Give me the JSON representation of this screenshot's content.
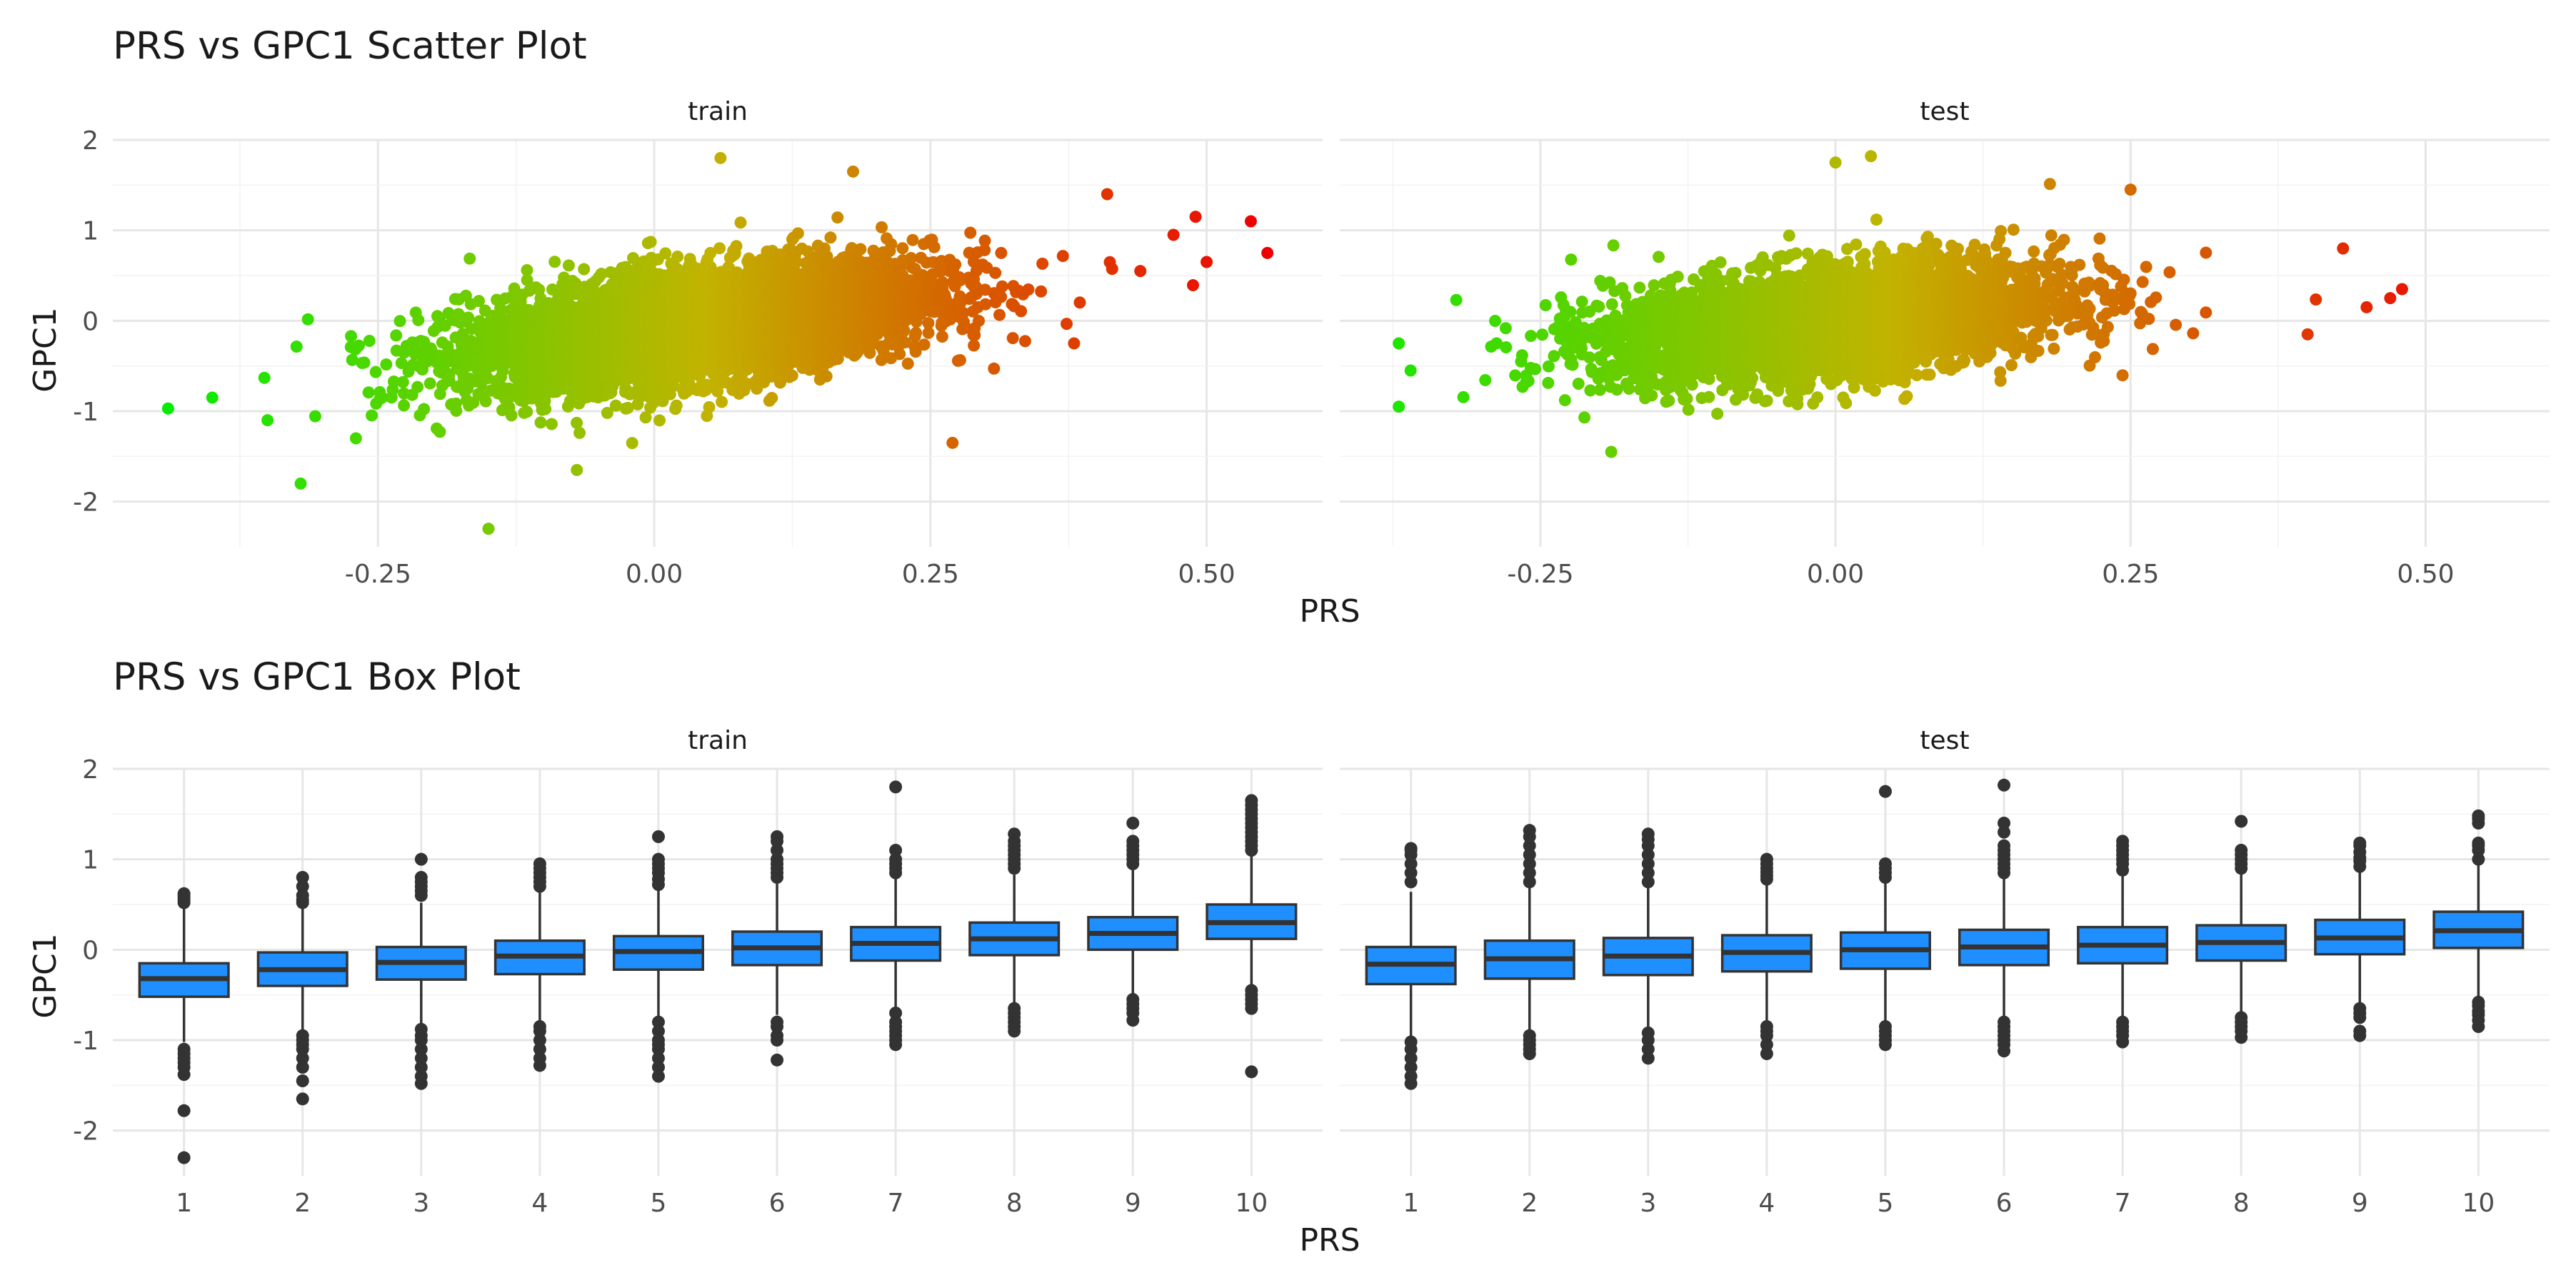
{
  "colors": {
    "grid_major": "#e6e6e6",
    "grid_minor": "#f2f2f2",
    "text_dark": "#1a1a1a",
    "text_tick": "#4d4d4d",
    "box_fill": "#1f8fff",
    "box_stroke": "#333333",
    "outlier": "#333333",
    "gradient_low": "#00ee00",
    "gradient_mid": "#c2b300",
    "gradient_high": "#ee0000"
  },
  "chart_data": [
    {
      "type": "scatter",
      "title": "PRS vs GPC1 Scatter Plot",
      "xlabel": "PRS",
      "ylabel": "GPC1",
      "color_scale": "color by PRS value, green (low) to red (high)",
      "panels": [
        {
          "name": "train",
          "xlim": [
            -0.49,
            0.605
          ],
          "ylim": [
            -2.5,
            2.0
          ],
          "xticks": [
            -0.25,
            0.0,
            0.25,
            0.5
          ],
          "xtick_labels": [
            "-0.25",
            "0.00",
            "0.25",
            "0.50"
          ],
          "yticks": [
            -2,
            -1,
            0,
            1,
            2
          ],
          "ytick_labels": [
            "-2",
            "-1",
            "0",
            "1",
            "2"
          ],
          "cloud": {
            "n": 5000,
            "x_mean": 0.04,
            "x_sd": 0.11,
            "slope": 1.6,
            "y_intercept": -0.05,
            "resid_sd": 0.3
          },
          "points": [
            {
              "x": -0.44,
              "y": -0.97
            },
            {
              "x": -0.4,
              "y": -0.85
            },
            {
              "x": -0.35,
              "y": -1.1
            },
            {
              "x": -0.32,
              "y": -1.8
            },
            {
              "x": -0.15,
              "y": -2.3
            },
            {
              "x": 0.06,
              "y": 1.8
            },
            {
              "x": 0.18,
              "y": 1.65
            },
            {
              "x": 0.27,
              "y": -1.35
            },
            {
              "x": 0.49,
              "y": 1.15
            },
            {
              "x": 0.54,
              "y": 1.1
            },
            {
              "x": 0.555,
              "y": 0.75
            },
            {
              "x": 0.5,
              "y": 0.65
            },
            {
              "x": 0.47,
              "y": 0.95
            },
            {
              "x": 0.44,
              "y": 0.55
            },
            {
              "x": 0.41,
              "y": 1.4
            },
            {
              "x": 0.38,
              "y": -0.25
            },
            {
              "x": -0.27,
              "y": -1.3
            },
            {
              "x": -0.07,
              "y": -1.65
            }
          ]
        },
        {
          "name": "test",
          "xlim": [
            -0.42,
            0.605
          ],
          "ylim": [
            -2.5,
            2.0
          ],
          "xticks": [
            -0.25,
            0.0,
            0.25,
            0.5
          ],
          "xtick_labels": [
            "-0.25",
            "0.00",
            "0.25",
            "0.50"
          ],
          "yticks": [
            -2,
            -1,
            0,
            1,
            2
          ],
          "ytick_labels": [
            "-2",
            "-1",
            "0",
            "1",
            "2"
          ],
          "cloud": {
            "n": 4000,
            "x_mean": 0.0,
            "x_sd": 0.1,
            "slope": 1.25,
            "y_intercept": 0.0,
            "resid_sd": 0.3
          },
          "points": [
            {
              "x": -0.37,
              "y": -0.95
            },
            {
              "x": -0.37,
              "y": -0.25
            },
            {
              "x": -0.36,
              "y": -0.55
            },
            {
              "x": 0.0,
              "y": 1.75
            },
            {
              "x": 0.03,
              "y": 1.82
            },
            {
              "x": 0.48,
              "y": 0.35
            },
            {
              "x": 0.47,
              "y": 0.25
            },
            {
              "x": 0.45,
              "y": 0.15
            },
            {
              "x": 0.43,
              "y": 0.8
            },
            {
              "x": -0.19,
              "y": -1.45
            },
            {
              "x": 0.25,
              "y": 1.45
            },
            {
              "x": 0.4,
              "y": -0.15
            }
          ]
        }
      ]
    },
    {
      "type": "box",
      "title": "PRS vs GPC1 Box Plot",
      "xlabel": "PRS",
      "ylabel": "GPC1",
      "panels": [
        {
          "name": "train",
          "categories": [
            "1",
            "2",
            "3",
            "4",
            "5",
            "6",
            "7",
            "8",
            "9",
            "10"
          ],
          "ylim": [
            -2.5,
            2.0
          ],
          "yticks": [
            -2,
            -1,
            0,
            1,
            2
          ],
          "ytick_labels": [
            "-2",
            "-1",
            "0",
            "1",
            "2"
          ],
          "boxes": [
            {
              "q1": -0.52,
              "median": -0.32,
              "q3": -0.15,
              "low": -1.02,
              "high": 0.5,
              "outliers": [
                0.52,
                0.55,
                0.58,
                0.6,
                0.62,
                -1.1,
                -1.15,
                -1.2,
                -1.25,
                -1.3,
                -1.38,
                -1.78,
                -2.3
              ]
            },
            {
              "q1": -0.4,
              "median": -0.22,
              "q3": -0.03,
              "low": -0.92,
              "high": 0.5,
              "outliers": [
                0.52,
                0.55,
                0.6,
                0.7,
                0.8,
                -0.95,
                -1.0,
                -1.05,
                -1.1,
                -1.2,
                -1.3,
                -1.45,
                -1.65
              ]
            },
            {
              "q1": -0.33,
              "median": -0.14,
              "q3": 0.03,
              "low": -0.85,
              "high": 0.52,
              "outliers": [
                0.6,
                0.65,
                0.7,
                0.75,
                0.8,
                1.0,
                -0.88,
                -0.95,
                -1.0,
                -1.1,
                -1.2,
                -1.3,
                -1.4,
                -1.48
              ]
            },
            {
              "q1": -0.27,
              "median": -0.07,
              "q3": 0.1,
              "low": -0.8,
              "high": 0.63,
              "outliers": [
                0.7,
                0.75,
                0.8,
                0.85,
                0.9,
                0.95,
                -0.85,
                -0.9,
                -1.0,
                -1.1,
                -1.2,
                -1.28
              ]
            },
            {
              "q1": -0.22,
              "median": -0.02,
              "q3": 0.15,
              "low": -0.75,
              "high": 0.68,
              "outliers": [
                0.72,
                0.78,
                0.85,
                0.9,
                0.95,
                1.0,
                1.25,
                -0.8,
                -0.9,
                -1.0,
                -1.05,
                -1.1,
                -1.2,
                -1.3,
                -1.4
              ]
            },
            {
              "q1": -0.17,
              "median": 0.02,
              "q3": 0.2,
              "low": -0.72,
              "high": 0.73,
              "outliers": [
                0.8,
                0.85,
                0.9,
                0.95,
                1.0,
                1.1,
                1.2,
                1.25,
                -0.8,
                -0.85,
                -0.95,
                -1.0,
                -1.22
              ]
            },
            {
              "q1": -0.12,
              "median": 0.07,
              "q3": 0.25,
              "low": -0.63,
              "high": 0.78,
              "outliers": [
                0.85,
                0.9,
                0.95,
                1.0,
                1.1,
                1.8,
                -0.7,
                -0.8,
                -0.85,
                -0.9,
                -0.95,
                -1.0,
                -1.05
              ]
            },
            {
              "q1": -0.06,
              "median": 0.12,
              "q3": 0.3,
              "low": -0.6,
              "high": 0.83,
              "outliers": [
                0.9,
                0.95,
                1.0,
                1.05,
                1.1,
                1.15,
                1.2,
                1.28,
                -0.65,
                -0.7,
                -0.75,
                -0.8,
                -0.85,
                -0.9
              ]
            },
            {
              "q1": 0.0,
              "median": 0.18,
              "q3": 0.36,
              "low": -0.52,
              "high": 0.88,
              "outliers": [
                0.95,
                1.0,
                1.05,
                1.1,
                1.15,
                1.2,
                1.4,
                -0.55,
                -0.6,
                -0.65,
                -0.7,
                -0.78
              ]
            },
            {
              "q1": 0.12,
              "median": 0.3,
              "q3": 0.5,
              "low": -0.42,
              "high": 1.05,
              "outliers": [
                1.1,
                1.15,
                1.2,
                1.25,
                1.3,
                1.35,
                1.4,
                1.45,
                1.5,
                1.55,
                1.6,
                1.65,
                -0.45,
                -0.5,
                -0.55,
                -0.6,
                -0.65,
                -1.35
              ]
            }
          ]
        },
        {
          "name": "test",
          "categories": [
            "1",
            "2",
            "3",
            "4",
            "5",
            "6",
            "7",
            "8",
            "9",
            "10"
          ],
          "ylim": [
            -2.5,
            2.0
          ],
          "yticks": [
            -2,
            -1,
            0,
            1,
            2
          ],
          "ytick_labels": [
            "-2",
            "-1",
            "0",
            "1",
            "2"
          ],
          "boxes": [
            {
              "q1": -0.38,
              "median": -0.16,
              "q3": 0.03,
              "low": -0.98,
              "high": 0.64,
              "outliers": [
                0.75,
                0.85,
                0.95,
                1.05,
                1.1,
                1.12,
                -1.02,
                -1.1,
                -1.2,
                -1.3,
                -1.4,
                -1.48
              ]
            },
            {
              "q1": -0.32,
              "median": -0.1,
              "q3": 0.1,
              "low": -0.9,
              "high": 0.7,
              "outliers": [
                0.75,
                0.85,
                0.95,
                1.05,
                1.15,
                1.25,
                1.32,
                -0.95,
                -1.0,
                -1.05,
                -1.1,
                -1.15
              ]
            },
            {
              "q1": -0.28,
              "median": -0.07,
              "q3": 0.13,
              "low": -0.88,
              "high": 0.72,
              "outliers": [
                0.75,
                0.85,
                0.95,
                1.05,
                1.15,
                1.22,
                1.28,
                -0.92,
                -1.0,
                -1.1,
                -1.2
              ]
            },
            {
              "q1": -0.24,
              "median": -0.03,
              "q3": 0.16,
              "low": -0.82,
              "high": 0.73,
              "outliers": [
                0.78,
                0.82,
                0.86,
                0.9,
                0.95,
                1.0,
                -0.85,
                -0.9,
                -0.95,
                -1.05,
                -1.15
              ]
            },
            {
              "q1": -0.21,
              "median": 0.0,
              "q3": 0.19,
              "low": -0.8,
              "high": 0.76,
              "outliers": [
                0.8,
                0.85,
                0.9,
                0.95,
                1.75,
                -0.85,
                -0.9,
                -0.95,
                -1.0,
                -1.05
              ]
            },
            {
              "q1": -0.17,
              "median": 0.03,
              "q3": 0.22,
              "low": -0.76,
              "high": 0.8,
              "outliers": [
                0.85,
                0.9,
                0.95,
                1.0,
                1.05,
                1.1,
                1.15,
                1.3,
                1.4,
                1.82,
                -0.8,
                -0.85,
                -0.9,
                -0.95,
                -1.0,
                -1.05,
                -1.12
              ]
            },
            {
              "q1": -0.15,
              "median": 0.05,
              "q3": 0.25,
              "low": -0.75,
              "high": 0.82,
              "outliers": [
                0.88,
                0.95,
                1.0,
                1.05,
                1.1,
                1.15,
                1.2,
                -0.8,
                -0.85,
                -0.9,
                -0.95,
                -1.02
              ]
            },
            {
              "q1": -0.12,
              "median": 0.08,
              "q3": 0.27,
              "low": -0.72,
              "high": 0.85,
              "outliers": [
                0.9,
                0.95,
                1.0,
                1.05,
                1.1,
                1.42,
                -0.75,
                -0.8,
                -0.85,
                -0.9,
                -0.97
              ]
            },
            {
              "q1": -0.05,
              "median": 0.13,
              "q3": 0.33,
              "low": -0.62,
              "high": 0.88,
              "outliers": [
                0.92,
                0.98,
                1.02,
                1.08,
                1.15,
                1.18,
                -0.65,
                -0.7,
                -0.75,
                -0.9,
                -0.95
              ]
            },
            {
              "q1": 0.02,
              "median": 0.21,
              "q3": 0.42,
              "low": -0.55,
              "high": 0.95,
              "outliers": [
                1.0,
                1.1,
                1.15,
                1.18,
                1.4,
                1.45,
                1.48,
                -0.58,
                -0.62,
                -0.68,
                -0.72,
                -0.78,
                -0.85
              ]
            }
          ]
        }
      ]
    }
  ]
}
